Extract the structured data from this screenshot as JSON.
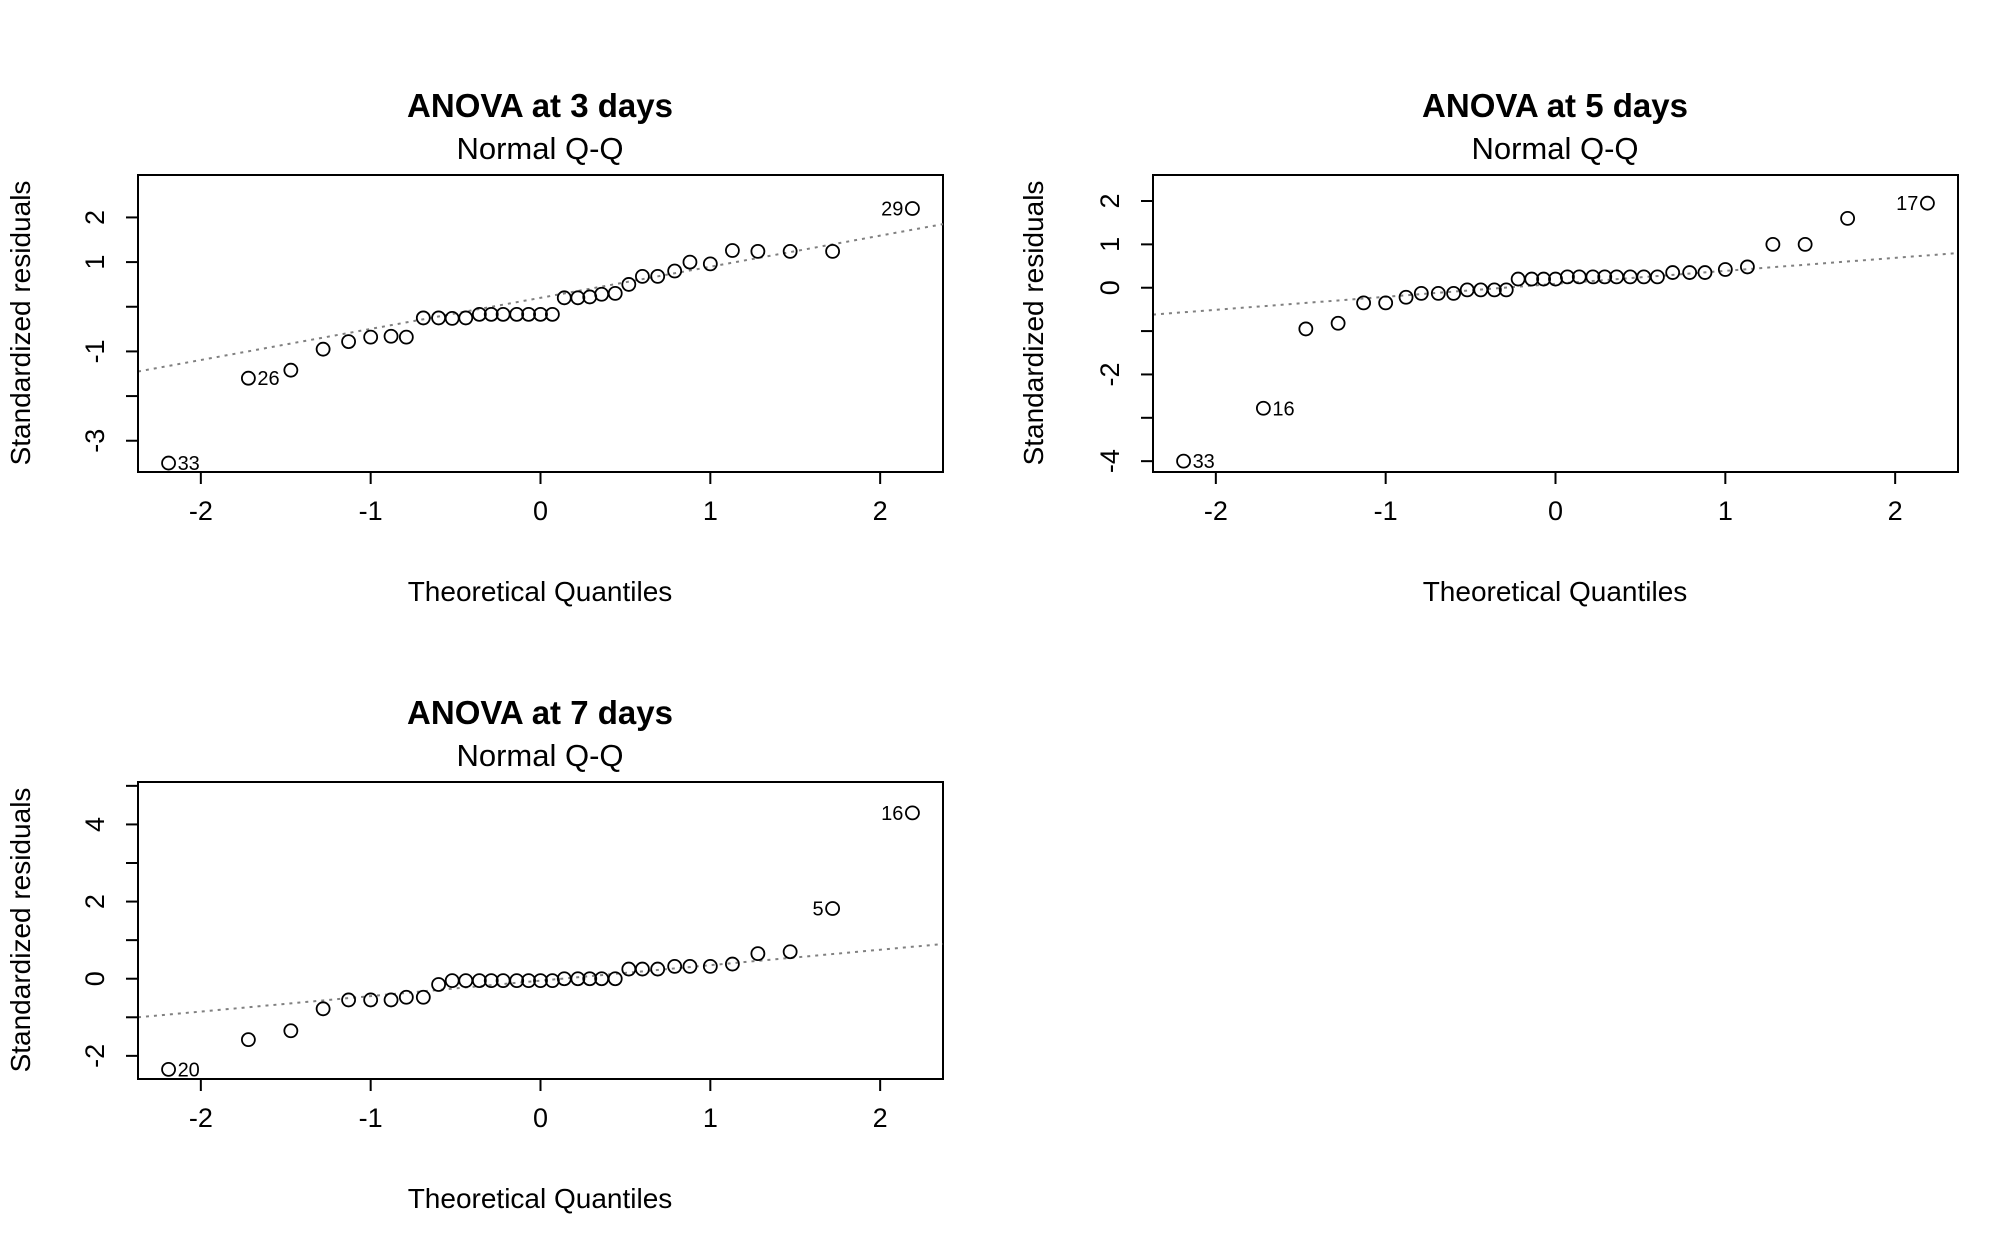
{
  "chart_data": [
    {
      "type": "scatter",
      "title": "ANOVA at 3 days",
      "subtitle": "Normal Q-Q",
      "xlabel": "Theoretical Quantiles",
      "ylabel": "Standardized residuals",
      "xlim": [
        -2.37,
        2.37
      ],
      "ylim": [
        -3.7,
        2.95
      ],
      "xticks": [
        -2,
        -1,
        0,
        1,
        2
      ],
      "xtick_labels": [
        "-2",
        "-1",
        "0",
        "1",
        "2"
      ],
      "yticks": [
        -3,
        -2,
        -1,
        0,
        1,
        2
      ],
      "ytick_labels": [
        "-3",
        "",
        "-1",
        "",
        "1",
        "2"
      ],
      "grid": false,
      "x": [
        -2.19,
        -1.72,
        -1.47,
        -1.28,
        -1.13,
        -1.0,
        -0.88,
        -0.79,
        -0.69,
        -0.6,
        -0.52,
        -0.44,
        -0.36,
        -0.29,
        -0.22,
        -0.14,
        -0.07,
        0.0,
        0.07,
        0.14,
        0.22,
        0.29,
        0.36,
        0.44,
        0.52,
        0.6,
        0.69,
        0.79,
        0.88,
        1.0,
        1.13,
        1.28,
        1.47,
        1.72,
        2.19
      ],
      "y": [
        -3.5,
        -1.6,
        -1.42,
        -0.95,
        -0.78,
        -0.68,
        -0.66,
        -0.68,
        -0.25,
        -0.25,
        -0.26,
        -0.25,
        -0.17,
        -0.17,
        -0.17,
        -0.17,
        -0.17,
        -0.17,
        -0.17,
        0.2,
        0.2,
        0.22,
        0.28,
        0.3,
        0.5,
        0.68,
        0.68,
        0.8,
        1.0,
        0.96,
        1.26,
        1.24,
        1.24,
        1.24,
        2.2
      ],
      "reference_line": {
        "points": [
          [
            -2.37,
            -1.45
          ],
          [
            2.37,
            1.85
          ]
        ],
        "style": "dotted",
        "color": "#808080"
      },
      "annotations": [
        {
          "text": "33",
          "x": -2.19,
          "y": -3.5,
          "side": "right"
        },
        {
          "text": "26",
          "x": -1.72,
          "y": -1.6,
          "side": "right"
        },
        {
          "text": "29",
          "x": 2.19,
          "y": 2.2,
          "side": "left"
        }
      ]
    },
    {
      "type": "scatter",
      "title": "ANOVA at 5 days",
      "subtitle": "Normal Q-Q",
      "xlabel": "Theoretical Quantiles",
      "ylabel": "Standardized residuals",
      "xlim": [
        -2.37,
        2.37
      ],
      "ylim": [
        -4.25,
        2.6
      ],
      "xticks": [
        -2,
        -1,
        0,
        1,
        2
      ],
      "xtick_labels": [
        "-2",
        "-1",
        "0",
        "1",
        "2"
      ],
      "yticks": [
        -4,
        -3,
        -2,
        -1,
        0,
        1,
        2
      ],
      "ytick_labels": [
        "-4",
        "",
        "-2",
        "",
        "0",
        "1",
        "2"
      ],
      "grid": false,
      "x": [
        -2.19,
        -1.72,
        -1.47,
        -1.28,
        -1.13,
        -1.0,
        -0.88,
        -0.79,
        -0.69,
        -0.6,
        -0.52,
        -0.44,
        -0.36,
        -0.29,
        -0.22,
        -0.14,
        -0.07,
        0.0,
        0.07,
        0.14,
        0.22,
        0.29,
        0.36,
        0.44,
        0.52,
        0.6,
        0.69,
        0.79,
        0.88,
        1.0,
        1.13,
        1.28,
        1.47,
        1.72,
        2.19
      ],
      "y": [
        -4.0,
        -2.78,
        -0.95,
        -0.82,
        -0.35,
        -0.35,
        -0.22,
        -0.13,
        -0.13,
        -0.13,
        -0.05,
        -0.05,
        -0.05,
        -0.05,
        0.2,
        0.2,
        0.2,
        0.2,
        0.25,
        0.25,
        0.25,
        0.25,
        0.25,
        0.25,
        0.25,
        0.25,
        0.35,
        0.35,
        0.35,
        0.42,
        0.48,
        1.0,
        1.0,
        1.6,
        1.95
      ],
      "reference_line": {
        "points": [
          [
            -2.37,
            -0.62
          ],
          [
            2.37,
            0.8
          ]
        ],
        "style": "dotted",
        "color": "#808080"
      },
      "annotations": [
        {
          "text": "33",
          "x": -2.19,
          "y": -4.0,
          "side": "right"
        },
        {
          "text": "16",
          "x": -1.72,
          "y": -2.78,
          "side": "right"
        },
        {
          "text": "17",
          "x": 2.19,
          "y": 1.95,
          "side": "left"
        }
      ]
    },
    {
      "type": "scatter",
      "title": "ANOVA at 7 days",
      "subtitle": "Normal Q-Q",
      "xlabel": "Theoretical Quantiles",
      "ylabel": "Standardized residuals",
      "xlim": [
        -2.37,
        2.37
      ],
      "ylim": [
        -2.6,
        5.1
      ],
      "xticks": [
        -2,
        -1,
        0,
        1,
        2
      ],
      "xtick_labels": [
        "-2",
        "-1",
        "0",
        "1",
        "2"
      ],
      "yticks": [
        -2,
        -1,
        0,
        1,
        2,
        3,
        4,
        5
      ],
      "ytick_labels": [
        "-2",
        "",
        "0",
        "",
        "2",
        "",
        "4",
        ""
      ],
      "grid": false,
      "x": [
        -2.19,
        -1.72,
        -1.47,
        -1.28,
        -1.13,
        -1.0,
        -0.88,
        -0.79,
        -0.69,
        -0.6,
        -0.52,
        -0.44,
        -0.36,
        -0.29,
        -0.22,
        -0.14,
        -0.07,
        0.0,
        0.07,
        0.14,
        0.22,
        0.29,
        0.36,
        0.44,
        0.52,
        0.6,
        0.69,
        0.79,
        0.88,
        1.0,
        1.13,
        1.28,
        1.47,
        1.72,
        2.19
      ],
      "y": [
        -2.35,
        -1.58,
        -1.35,
        -0.78,
        -0.55,
        -0.55,
        -0.55,
        -0.48,
        -0.48,
        -0.15,
        -0.05,
        -0.05,
        -0.05,
        -0.05,
        -0.05,
        -0.05,
        -0.05,
        -0.05,
        -0.05,
        0.0,
        0.0,
        0.0,
        0.0,
        0.0,
        0.25,
        0.25,
        0.25,
        0.32,
        0.32,
        0.32,
        0.38,
        0.65,
        0.7,
        1.82,
        4.3
      ],
      "reference_line": {
        "points": [
          [
            -2.37,
            -1.0
          ],
          [
            2.37,
            0.9
          ]
        ],
        "style": "dotted",
        "color": "#808080"
      },
      "annotations": [
        {
          "text": "20",
          "x": -2.19,
          "y": -2.35,
          "side": "right"
        },
        {
          "text": "5",
          "x": 1.72,
          "y": 1.82,
          "side": "left"
        },
        {
          "text": "16",
          "x": 2.19,
          "y": 4.3,
          "side": "left"
        }
      ]
    }
  ]
}
